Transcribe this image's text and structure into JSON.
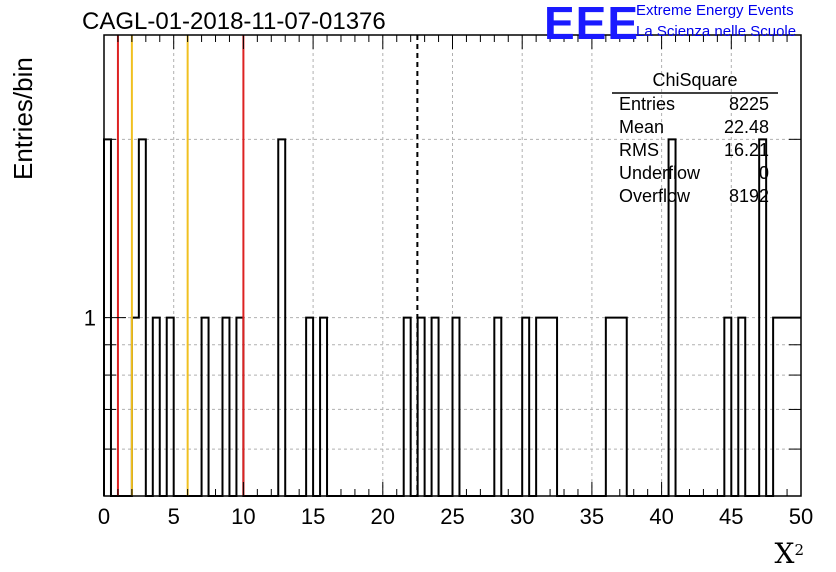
{
  "page_title": "CAGL-01-2018-11-07-01376",
  "logo": {
    "mark": "EEE",
    "line1": "Extreme Energy Events",
    "line2": "La Scienza nelle Scuole",
    "color": "#1a1aff"
  },
  "chart_data": {
    "type": "bar",
    "title": "CAGL-01-2018-11-07-01376",
    "xlabel": "X",
    "xlabel_superscript": "2",
    "ylabel": "Entries/bin",
    "xlim": [
      0,
      50
    ],
    "ylim": [
      0.5,
      3
    ],
    "yscale": "log",
    "grid": true,
    "xticks": [
      "0",
      "5",
      "10",
      "15",
      "20",
      "25",
      "30",
      "35",
      "40",
      "45",
      "50"
    ],
    "yticks": [
      "1"
    ],
    "bin_width": 0.5,
    "bins": [
      {
        "x": 0.0,
        "y": 2
      },
      {
        "x": 0.5,
        "y": 0
      },
      {
        "x": 1.0,
        "y": 0
      },
      {
        "x": 1.5,
        "y": 0
      },
      {
        "x": 2.0,
        "y": 1
      },
      {
        "x": 2.5,
        "y": 2
      },
      {
        "x": 3.0,
        "y": 0
      },
      {
        "x": 3.5,
        "y": 1
      },
      {
        "x": 4.0,
        "y": 0
      },
      {
        "x": 4.5,
        "y": 1
      },
      {
        "x": 5.0,
        "y": 0
      },
      {
        "x": 5.5,
        "y": 0
      },
      {
        "x": 6.0,
        "y": 0
      },
      {
        "x": 6.5,
        "y": 0
      },
      {
        "x": 7.0,
        "y": 1
      },
      {
        "x": 7.5,
        "y": 0
      },
      {
        "x": 8.0,
        "y": 0
      },
      {
        "x": 8.5,
        "y": 1
      },
      {
        "x": 9.0,
        "y": 0
      },
      {
        "x": 9.5,
        "y": 1
      },
      {
        "x": 10.0,
        "y": 0
      },
      {
        "x": 10.5,
        "y": 0
      },
      {
        "x": 11.0,
        "y": 0
      },
      {
        "x": 11.5,
        "y": 0
      },
      {
        "x": 12.0,
        "y": 0
      },
      {
        "x": 12.5,
        "y": 2
      },
      {
        "x": 13.0,
        "y": 0
      },
      {
        "x": 13.5,
        "y": 0
      },
      {
        "x": 14.0,
        "y": 0
      },
      {
        "x": 14.5,
        "y": 1
      },
      {
        "x": 15.0,
        "y": 0
      },
      {
        "x": 15.5,
        "y": 1
      },
      {
        "x": 21.5,
        "y": 1
      },
      {
        "x": 22.0,
        "y": 0
      },
      {
        "x": 22.5,
        "y": 1
      },
      {
        "x": 23.0,
        "y": 0
      },
      {
        "x": 23.5,
        "y": 1
      },
      {
        "x": 24.0,
        "y": 0
      },
      {
        "x": 24.5,
        "y": 0
      },
      {
        "x": 25.0,
        "y": 1
      },
      {
        "x": 28.0,
        "y": 1
      },
      {
        "x": 30.0,
        "y": 1
      },
      {
        "x": 30.5,
        "y": 0
      },
      {
        "x": 31.0,
        "y": 1
      },
      {
        "x": 31.5,
        "y": 1
      },
      {
        "x": 32.0,
        "y": 1
      },
      {
        "x": 36.0,
        "y": 1
      },
      {
        "x": 36.5,
        "y": 1
      },
      {
        "x": 37.0,
        "y": 1
      },
      {
        "x": 40.5,
        "y": 2
      },
      {
        "x": 44.5,
        "y": 1
      },
      {
        "x": 45.0,
        "y": 0
      },
      {
        "x": 45.5,
        "y": 1
      },
      {
        "x": 46.5,
        "y": 0
      },
      {
        "x": 47.0,
        "y": 2
      },
      {
        "x": 47.5,
        "y": 0
      },
      {
        "x": 48.0,
        "y": 1
      },
      {
        "x": 48.5,
        "y": 1
      },
      {
        "x": 49.0,
        "y": 1
      },
      {
        "x": 49.5,
        "y": 1
      }
    ],
    "vertical_lines": [
      {
        "x": 1.0,
        "color": "#dd2222",
        "style": "solid"
      },
      {
        "x": 2.0,
        "color": "#f0c020",
        "style": "solid"
      },
      {
        "x": 6.0,
        "color": "#f0c020",
        "style": "solid"
      },
      {
        "x": 10.0,
        "color": "#dd2222",
        "style": "solid"
      },
      {
        "x": 22.48,
        "color": "#000000",
        "style": "dashed"
      }
    ],
    "stats_box": {
      "title": "ChiSquare",
      "rows": [
        {
          "label": "Entries",
          "value": "8225"
        },
        {
          "label": "Mean",
          "value": "22.48"
        },
        {
          "label": "RMS",
          "value": "16.21"
        },
        {
          "label": "Underflow",
          "value": "0"
        },
        {
          "label": "Overflow",
          "value": "8192"
        }
      ]
    }
  }
}
